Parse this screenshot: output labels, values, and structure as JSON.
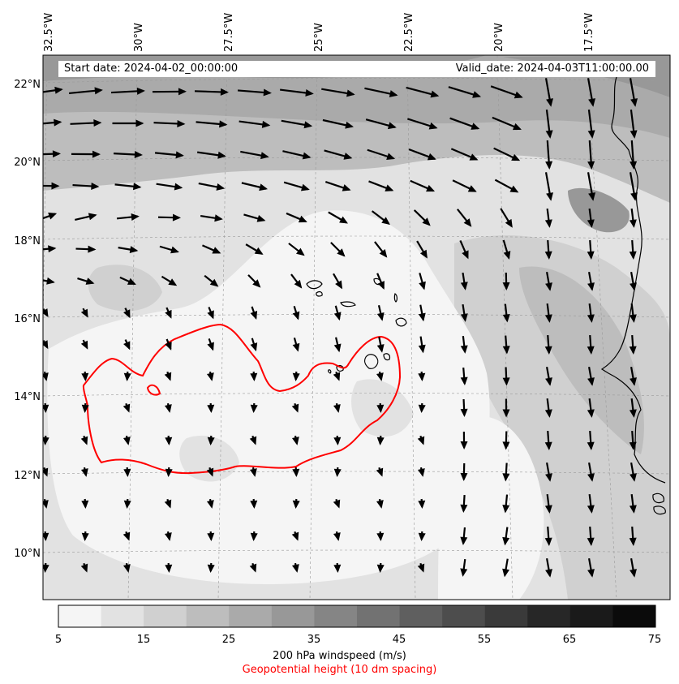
{
  "map": {
    "title_left": "Start date: 2024-04-02_00:00:00",
    "title_right": "Valid_date: 2024-04-03T11:00:00.00",
    "lon_labels": [
      "32.5°W",
      "30°W",
      "27.5°W",
      "25°W",
      "22.5°W",
      "20°W",
      "17.5°W"
    ],
    "lat_labels": [
      "22°N",
      "20°N",
      "18°N",
      "16°N",
      "14°N",
      "12°N",
      "10°N"
    ],
    "colorbar": {
      "ticks": [
        "5",
        "15",
        "25",
        "35",
        "45",
        "55",
        "65",
        "75"
      ],
      "label": "200 hPa windspeed (m/s)",
      "secondary_label": "Geopotential height (10 dm spacing)",
      "secondary_color": "#ff0000",
      "colors": [
        "#f5f5f5",
        "#e2e2e2",
        "#d0d0d0",
        "#bdbdbd",
        "#aaaaaa",
        "#989898",
        "#858585",
        "#727272",
        "#5f5f5f",
        "#4d4d4d",
        "#3a3a3a",
        "#272727",
        "#1a1a1a",
        "#0b0b0b"
      ]
    }
  }
}
